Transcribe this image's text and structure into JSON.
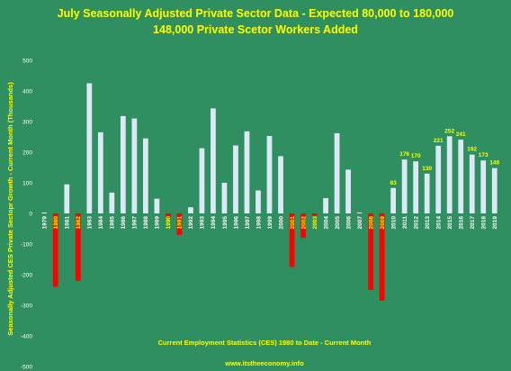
{
  "chart_data": {
    "type": "bar",
    "title": "July Seasonally Adjusted Private Sector Data - Expected 80,000 to 180,000",
    "subtitle": "148,000 Private Scetor Workers Added",
    "ylabel": "Seasonally Adjusted CES Private Sectopr Growth - Current Month (Thousands)",
    "note": "Current Employment Statistics (CES) 1980 to Date - Current Month",
    "source": "www.itstheeconomy.info",
    "ylim": [
      -500,
      500
    ],
    "yticks": [
      "500",
      "400",
      "300",
      "200",
      "100",
      "0",
      "-100",
      "-200",
      "-300",
      "-400",
      "-500"
    ],
    "grid": false,
    "colors": {
      "positive": "#dde8f7",
      "negative": "#ff0000",
      "title": "#ffff00",
      "background": "#2f8f60",
      "negative_label": "#ffff00",
      "positive_label": "#ffffff"
    },
    "categories": [
      "1979",
      "1980",
      "1981",
      "1982",
      "1983",
      "1984",
      "1985",
      "1986",
      "1987",
      "1988",
      "1989",
      "1990",
      "1991",
      "1992",
      "1993",
      "1994",
      "1995",
      "1996",
      "1997",
      "1998",
      "1999",
      "2000",
      "2001",
      "2002",
      "2003",
      "2004",
      "2005",
      "2006",
      "2007",
      "2008",
      "2009",
      "2010",
      "2011",
      "2012",
      "2013",
      "2014",
      "2015",
      "2016",
      "2017",
      "2018",
      "2019"
    ],
    "values": [
      3,
      -240,
      95,
      -220,
      425,
      265,
      68,
      318,
      310,
      245,
      48,
      -15,
      -70,
      20,
      213,
      343,
      100,
      222,
      268,
      75,
      253,
      187,
      -175,
      -80,
      -8,
      50,
      262,
      143,
      3,
      -250,
      -285,
      83,
      176,
      170,
      130,
      221,
      252,
      241,
      192,
      173,
      148
    ],
    "data_labels": [
      {
        "category": "2010",
        "text": "83"
      },
      {
        "category": "2011",
        "text": "176"
      },
      {
        "category": "2012",
        "text": "170"
      },
      {
        "category": "2013",
        "text": "130"
      },
      {
        "category": "2014",
        "text": "221"
      },
      {
        "category": "2015",
        "text": "252"
      },
      {
        "category": "2016",
        "text": "241"
      },
      {
        "category": "2017",
        "text": "192"
      },
      {
        "category": "2018",
        "text": "173"
      },
      {
        "category": "2019",
        "text": "148"
      }
    ]
  }
}
